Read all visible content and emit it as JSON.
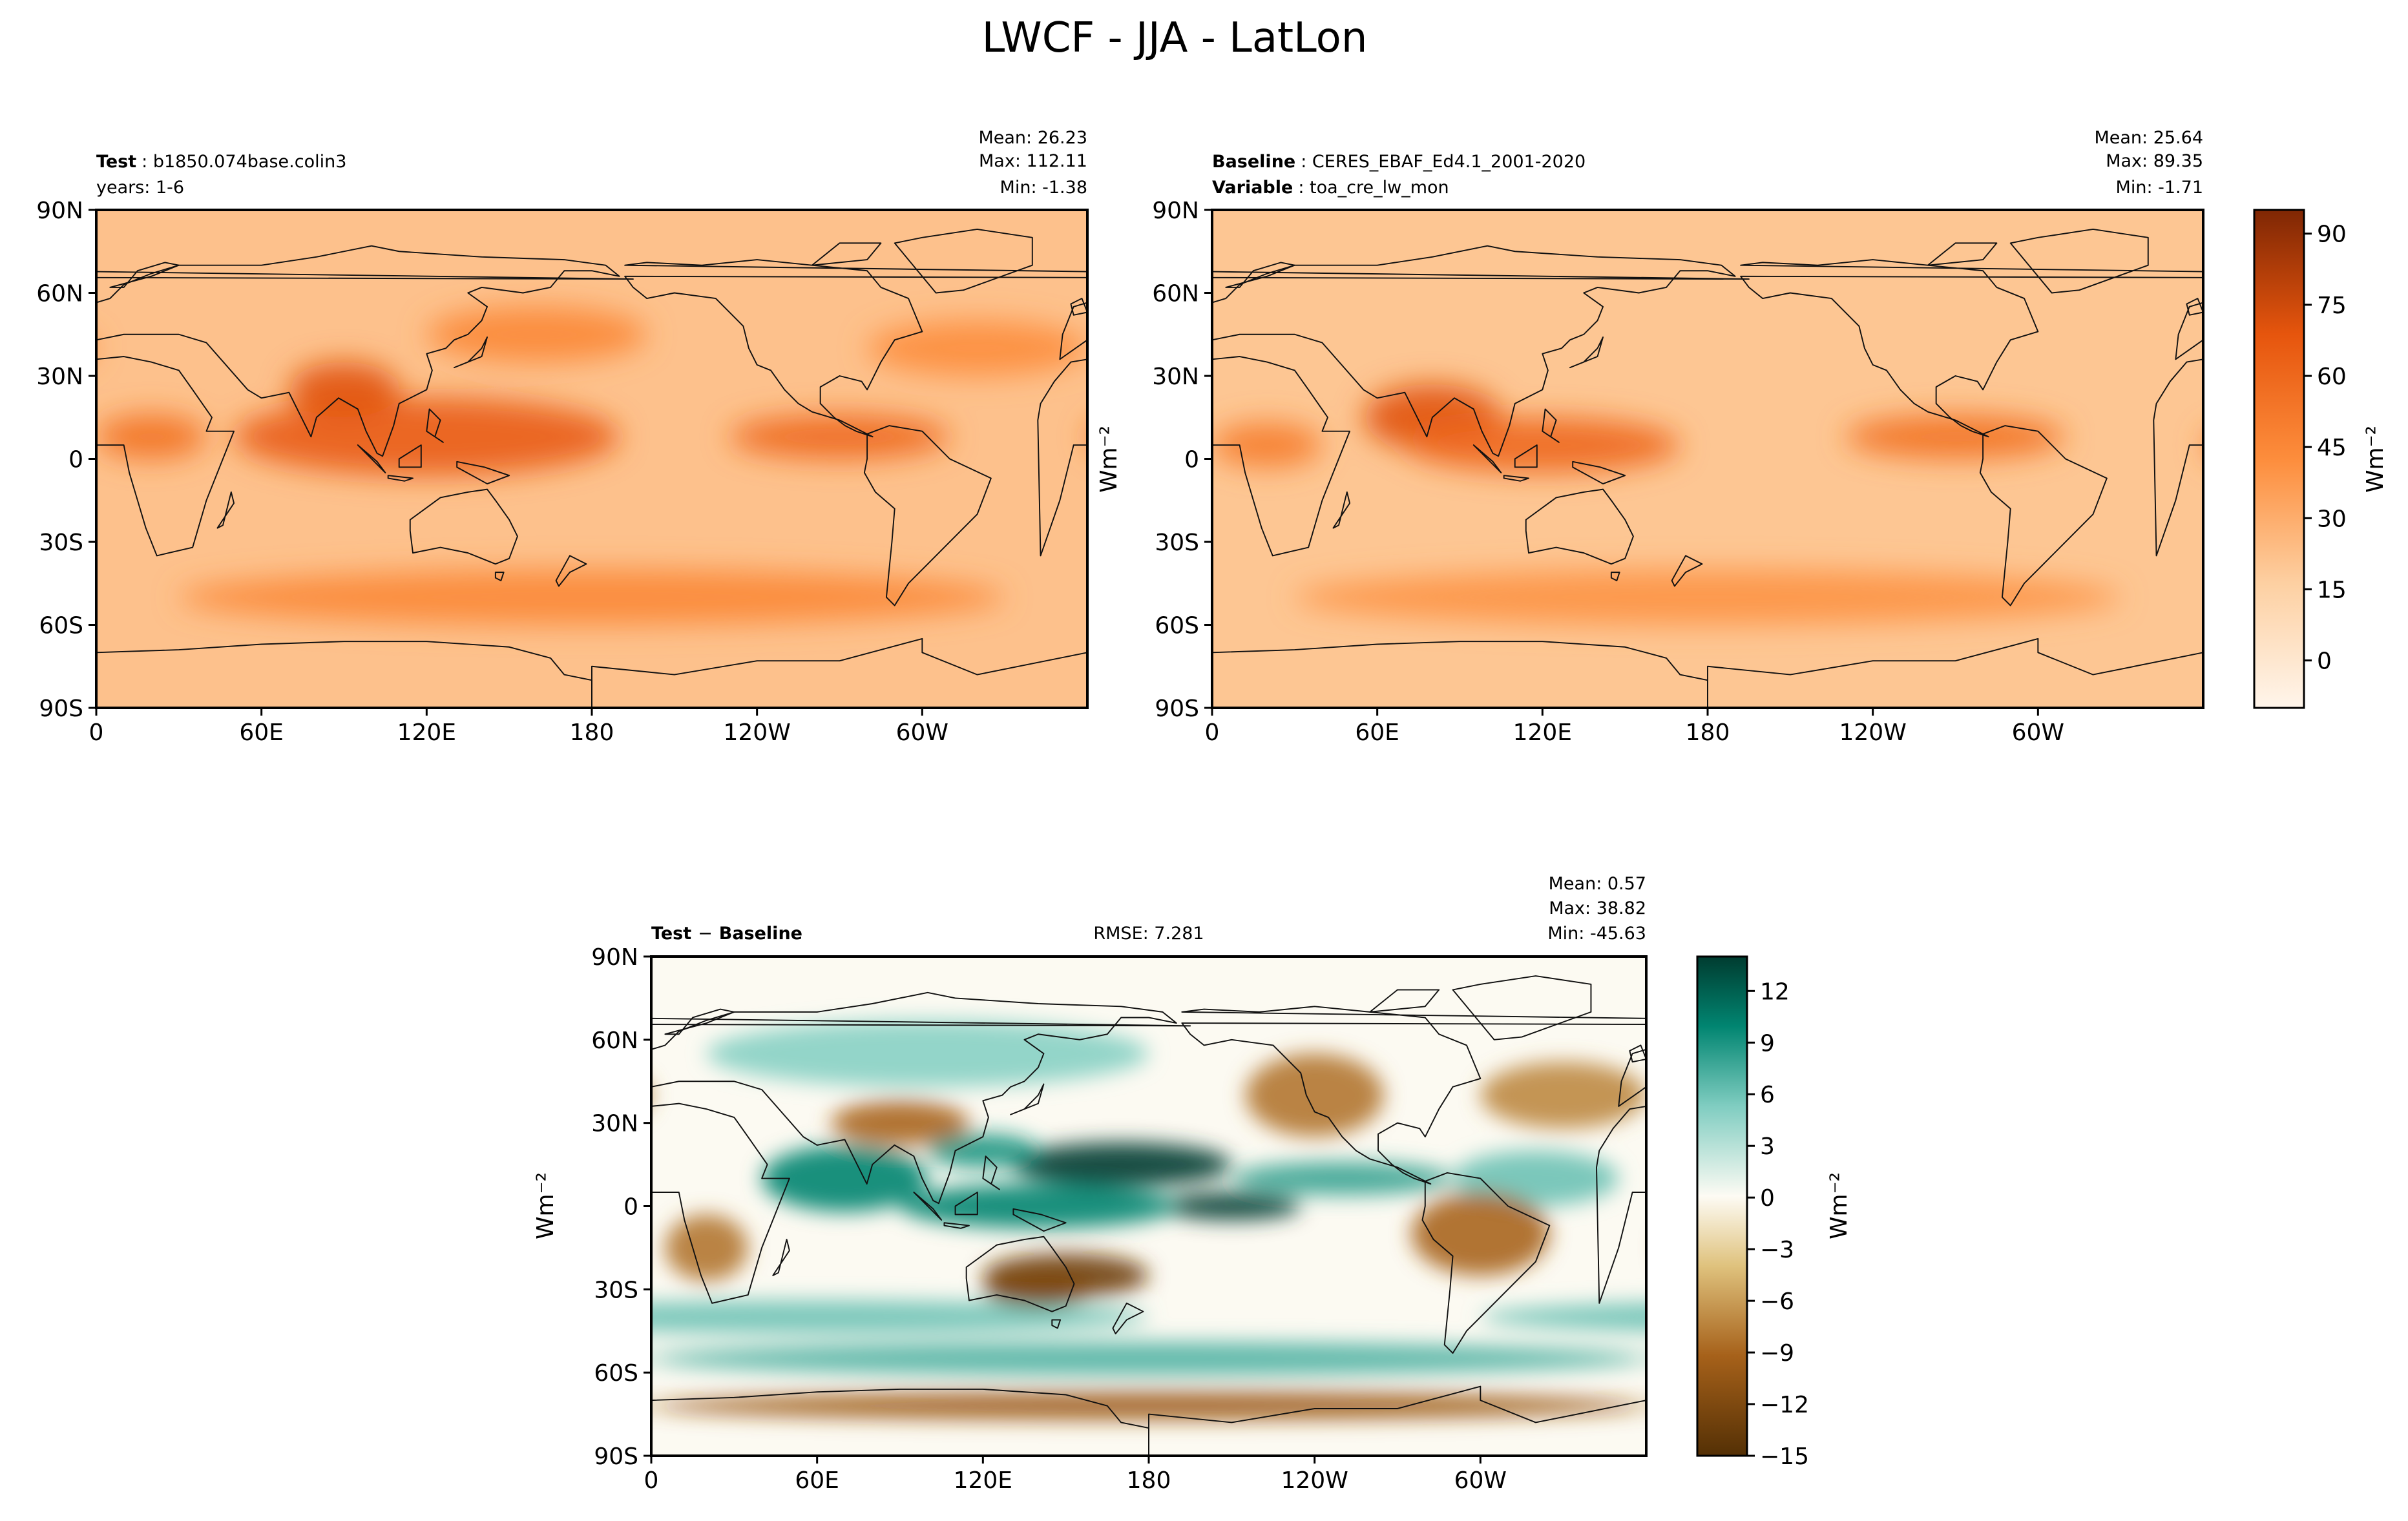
{
  "figure_title": "LWCF - JJA - LatLon",
  "chart_data": [
    {
      "id": "test",
      "type": "heatmap",
      "map_projection": "PlateCarree lat-lon",
      "label_bold": "Test",
      "label_text": "b1850.074base.colin3",
      "sub_label": "years: 1-6",
      "stats": [
        "Mean: 26.23",
        "Max: 112.11",
        "Min: -1.38"
      ],
      "xticks": [
        "0",
        "60E",
        "120E",
        "180",
        "120W",
        "60W"
      ],
      "yticks": [
        "90N",
        "60N",
        "30N",
        "0",
        "30S",
        "60S",
        "90S"
      ],
      "xlim": [
        0,
        360
      ],
      "ylim": [
        -90,
        90
      ],
      "units": "Wm⁻²",
      "colormap": "Oranges",
      "features": [
        {
          "lon": 120,
          "lat": 8,
          "value": 65,
          "rx": 70,
          "ry": 14
        },
        {
          "lon": 90,
          "lat": 25,
          "value": 70,
          "rx": 20,
          "ry": 10
        },
        {
          "lon": 270,
          "lat": 8,
          "value": 60,
          "rx": 40,
          "ry": 8
        },
        {
          "lon": 20,
          "lat": 8,
          "value": 55,
          "rx": 20,
          "ry": 8
        },
        {
          "lon": 180,
          "lat": -50,
          "value": 45,
          "rx": 150,
          "ry": 10
        },
        {
          "lon": 160,
          "lat": 45,
          "value": 45,
          "rx": 40,
          "ry": 10
        },
        {
          "lon": 320,
          "lat": 40,
          "value": 42,
          "rx": 40,
          "ry": 10
        }
      ]
    },
    {
      "id": "baseline",
      "type": "heatmap",
      "map_projection": "PlateCarree lat-lon",
      "label_bold": "Baseline",
      "label_text": "CERES_EBAF_Ed4.1_2001-2020",
      "label2_bold": "Variable",
      "label2_text": "toa_cre_lw_mon",
      "stats": [
        "Mean: 25.64",
        "Max: 89.35",
        "Min: -1.71"
      ],
      "xticks": [
        "0",
        "60E",
        "120E",
        "180",
        "120W",
        "60W"
      ],
      "yticks": [
        "90N",
        "60N",
        "30N",
        "0",
        "30S",
        "60S",
        "90S"
      ],
      "xlim": [
        0,
        360
      ],
      "ylim": [
        -90,
        90
      ],
      "ylabel": "Wm⁻²",
      "colormap": "Oranges",
      "colorbar": {
        "ticks": [
          "90",
          "75",
          "60",
          "45",
          "30",
          "15",
          "0"
        ],
        "label": "Wm⁻²",
        "range": [
          -10,
          95
        ]
      },
      "features": [
        {
          "lon": 80,
          "lat": 15,
          "value": 70,
          "rx": 25,
          "ry": 12
        },
        {
          "lon": 120,
          "lat": 5,
          "value": 60,
          "rx": 50,
          "ry": 10
        },
        {
          "lon": 270,
          "lat": 8,
          "value": 55,
          "rx": 40,
          "ry": 8
        },
        {
          "lon": 20,
          "lat": 5,
          "value": 50,
          "rx": 20,
          "ry": 8
        },
        {
          "lon": 180,
          "lat": -50,
          "value": 40,
          "rx": 150,
          "ry": 10
        }
      ]
    },
    {
      "id": "difference",
      "type": "heatmap",
      "map_projection": "PlateCarree lat-lon",
      "label_bold_left": "Test",
      "label_minus": "−",
      "label_bold_right": "Baseline",
      "center_text": "RMSE: 7.281",
      "stats": [
        "Mean:  0.57",
        "Max: 38.82",
        "Min: -45.63"
      ],
      "xticks": [
        "0",
        "60E",
        "120E",
        "180",
        "120W",
        "60W"
      ],
      "yticks": [
        "90N",
        "60N",
        "30N",
        "0",
        "30S",
        "60S",
        "90S"
      ],
      "xlim": [
        0,
        360
      ],
      "ylim": [
        -90,
        90
      ],
      "ylabel": "Wm⁻²",
      "colormap": "BrBG",
      "colorbar": {
        "ticks": [
          "12",
          "9",
          "6",
          "3",
          "0",
          "−3",
          "−6",
          "−9",
          "−12",
          "−15"
        ],
        "label": "Wm⁻²",
        "range": [
          -15,
          14
        ]
      },
      "features": [
        {
          "lon": 170,
          "lat": 15,
          "value": 14,
          "rx": 40,
          "ry": 8
        },
        {
          "lon": 210,
          "lat": 0,
          "value": 14,
          "rx": 25,
          "ry": 5
        },
        {
          "lon": 140,
          "lat": 0,
          "value": 10,
          "rx": 50,
          "ry": 8
        },
        {
          "lon": 70,
          "lat": 10,
          "value": 10,
          "rx": 30,
          "ry": 12
        },
        {
          "lon": 250,
          "lat": 10,
          "value": 8,
          "rx": 40,
          "ry": 6
        },
        {
          "lon": 320,
          "lat": 10,
          "value": 6,
          "rx": 30,
          "ry": 10
        },
        {
          "lon": 60,
          "lat": -40,
          "value": 6,
          "rx": 120,
          "ry": 6
        },
        {
          "lon": 180,
          "lat": -55,
          "value": 7,
          "rx": 180,
          "ry": 6
        },
        {
          "lon": 100,
          "lat": 55,
          "value": 5,
          "rx": 80,
          "ry": 12
        },
        {
          "lon": 150,
          "lat": -25,
          "value": -13,
          "rx": 30,
          "ry": 8
        },
        {
          "lon": 140,
          "lat": -30,
          "value": -12,
          "rx": 20,
          "ry": 6
        },
        {
          "lon": 20,
          "lat": -15,
          "value": -8,
          "rx": 15,
          "ry": 12
        },
        {
          "lon": 300,
          "lat": -10,
          "value": -9,
          "rx": 25,
          "ry": 15
        },
        {
          "lon": 240,
          "lat": 40,
          "value": -8,
          "rx": 25,
          "ry": 15
        },
        {
          "lon": 330,
          "lat": 40,
          "value": -7,
          "rx": 30,
          "ry": 12
        },
        {
          "lon": 90,
          "lat": 30,
          "value": -9,
          "rx": 25,
          "ry": 8
        },
        {
          "lon": 180,
          "lat": -72,
          "value": -10,
          "rx": 180,
          "ry": 5
        },
        {
          "lon": 120,
          "lat": 20,
          "value": 9,
          "rx": 20,
          "ry": 6
        }
      ]
    }
  ]
}
